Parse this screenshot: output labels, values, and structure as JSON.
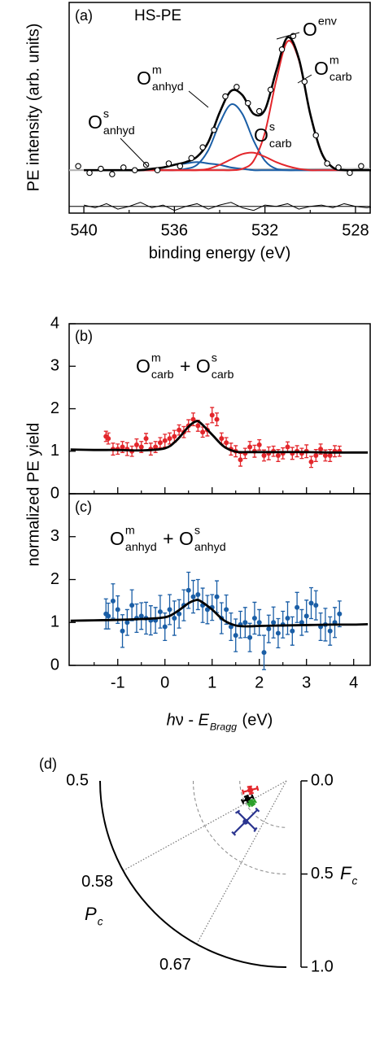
{
  "chart_data": [
    {
      "type": "line",
      "label": "(a)",
      "annotation": "HS-PE",
      "xlabel": "binding energy (eV)",
      "ylabel": "PE intensity (arb. units)",
      "xlim": [
        540.65,
        527.35
      ],
      "ylim": [
        -0.32,
        1.25
      ],
      "xticks": [
        540,
        536,
        532,
        528
      ],
      "xminorticks": [
        538,
        534,
        530
      ],
      "x": [
        540,
        539.5,
        539,
        538.5,
        538,
        537.5,
        537,
        536.5,
        536,
        535.5,
        535,
        534.5,
        534,
        533.5,
        533,
        532.5,
        532,
        531.5,
        531,
        530.5,
        530,
        529.5,
        529,
        528.5,
        528,
        527.5,
        527
      ],
      "series": [
        {
          "label": {
            "text": "O",
            "sup": "env",
            "color": "#000000"
          },
          "color": "#000000",
          "values": [
            0,
            0,
            0,
            0,
            0,
            0,
            0.01,
            0.02,
            0.04,
            0.06,
            0.1,
            0.21,
            0.43,
            0.59,
            0.56,
            0.42,
            0.45,
            0.74,
            0.99,
            0.83,
            0.42,
            0.13,
            0.02,
            0,
            0,
            0,
            0
          ]
        },
        {
          "label": {
            "text": "O",
            "sup": "m",
            "sub": "carb",
            "color": "#e3262b"
          },
          "color": "#e3262b",
          "values": [
            0,
            0,
            0,
            0,
            0,
            0,
            0,
            0,
            0,
            0,
            0,
            0,
            0,
            0,
            0.01,
            0.07,
            0.28,
            0.67,
            0.96,
            0.82,
            0.42,
            0.13,
            0.02,
            0,
            0,
            0,
            0
          ]
        },
        {
          "label": {
            "text": "O",
            "sup": "s",
            "sub": "carb",
            "color": "#e3262b"
          },
          "color": "#e3262b",
          "values": [
            0,
            0,
            0,
            0,
            0,
            0,
            0,
            0,
            0,
            0,
            0,
            0.01,
            0.04,
            0.08,
            0.12,
            0.13,
            0.1,
            0.06,
            0.03,
            0.01,
            0,
            0,
            0,
            0,
            0,
            0,
            0
          ]
        },
        {
          "label": {
            "text": "O",
            "sup": "m",
            "sub": "anhyd",
            "color": "#2b3590"
          },
          "color": "#1a5ea6",
          "values": [
            0,
            0,
            0,
            0,
            0,
            0,
            0,
            0,
            0,
            0.01,
            0.04,
            0.15,
            0.35,
            0.49,
            0.42,
            0.22,
            0.07,
            0.01,
            0,
            0,
            0,
            0,
            0,
            0,
            0,
            0,
            0
          ]
        },
        {
          "label": {
            "text": "O",
            "sup": "s",
            "sub": "anhyd",
            "color": "#2b3590"
          },
          "color": "#1a5ea6",
          "values": [
            0,
            0,
            0,
            0,
            0,
            0,
            0.01,
            0.02,
            0.04,
            0.05,
            0.06,
            0.05,
            0.04,
            0.02,
            0.01,
            0,
            0,
            0,
            0,
            0,
            0,
            0,
            0,
            0,
            0,
            0,
            0
          ]
        },
        {
          "color": "#b0b0b0",
          "x": [
            540.65,
            527.35
          ],
          "values": [
            0,
            0.01
          ]
        }
      ],
      "points": {
        "color": "#000000",
        "x": [
          540.25,
          539.75,
          539.25,
          538.75,
          538.25,
          537.75,
          537.25,
          536.75,
          536.25,
          535.75,
          535.25,
          534.75,
          534.25,
          533.75,
          533.25,
          532.75,
          532.25,
          531.75,
          531.25,
          530.75,
          530.25,
          529.75,
          529.25,
          528.75,
          528.25,
          527.75
        ],
        "values": [
          0.03,
          -0.02,
          0.01,
          -0.03,
          0.02,
          0.0,
          0.04,
          0.0,
          0.05,
          0.03,
          0.09,
          0.17,
          0.3,
          0.55,
          0.62,
          0.5,
          0.44,
          0.6,
          0.9,
          1.0,
          0.66,
          0.26,
          0.05,
          0.02,
          -0.02,
          0.03
        ]
      },
      "residual": {
        "color": "#000000",
        "values": [
          -0.26,
          -0.28,
          -0.25,
          -0.29,
          -0.27,
          -0.24,
          -0.28,
          -0.26,
          -0.3,
          -0.27,
          -0.25,
          -0.29,
          -0.26,
          -0.24,
          -0.28,
          -0.3,
          -0.26,
          -0.27,
          -0.25,
          -0.29,
          -0.27,
          -0.26,
          -0.28,
          -0.25,
          -0.27,
          -0.28,
          -0.27
        ]
      },
      "residual_baseline": -0.27
    },
    {
      "type": "errorbar",
      "label": "(b)",
      "annotation": {
        "color": "#e3262b",
        "parts": [
          {
            "text": "O",
            "sup": "m",
            "sub": "carb"
          },
          {
            "text": " + "
          },
          {
            "text": "O",
            "sup": "s",
            "sub": "carb"
          }
        ]
      },
      "ylabel": "normalized PE yield",
      "xlim": [
        -2.03,
        4.35
      ],
      "ylim": [
        0,
        4
      ],
      "yticks": [
        0,
        1,
        2,
        3,
        4
      ],
      "xticks": [
        -1,
        0,
        1,
        2,
        3,
        4
      ],
      "xminorticks": [
        -1.5,
        -0.5,
        0.5,
        1.5,
        2.5,
        3.5
      ],
      "xtick_labels": false,
      "points": {
        "color": "#e3262b",
        "x": [
          -1.25,
          -1.2,
          -1.1,
          -1.0,
          -0.9,
          -0.8,
          -0.7,
          -0.6,
          -0.5,
          -0.4,
          -0.3,
          -0.2,
          -0.1,
          0,
          0.1,
          0.2,
          0.3,
          0.4,
          0.5,
          0.6,
          0.7,
          0.8,
          0.9,
          1.0,
          1.1,
          1.2,
          1.3,
          1.4,
          1.5,
          1.6,
          1.7,
          1.8,
          1.9,
          2.0,
          2.1,
          2.2,
          2.3,
          2.4,
          2.5,
          2.6,
          2.7,
          2.8,
          2.9,
          3.0,
          3.1,
          3.2,
          3.3,
          3.4,
          3.5,
          3.6,
          3.7
        ],
        "values": [
          1.35,
          1.3,
          1.05,
          1.05,
          1.1,
          1.05,
          1.0,
          1.15,
          1.1,
          1.3,
          1.05,
          1.1,
          1.2,
          1.25,
          1.3,
          1.35,
          1.5,
          1.45,
          1.6,
          1.75,
          1.6,
          1.45,
          1.5,
          1.85,
          1.75,
          1.3,
          1.2,
          1.05,
          1.0,
          0.8,
          0.95,
          1.1,
          1.0,
          1.15,
          0.9,
          0.95,
          1.0,
          0.9,
          0.95,
          1.1,
          0.95,
          1.0,
          0.95,
          1.0,
          0.75,
          0.9,
          1.05,
          0.9,
          0.9,
          1.0,
          1.0
        ],
        "errors": [
          0.12,
          0.13,
          0.14,
          0.12,
          0.13,
          0.15,
          0.12,
          0.14,
          0.13,
          0.12,
          0.14,
          0.13,
          0.12,
          0.15,
          0.13,
          0.14,
          0.12,
          0.13,
          0.14,
          0.15,
          0.13,
          0.12,
          0.14,
          0.18,
          0.15,
          0.13,
          0.12,
          0.14,
          0.13,
          0.15,
          0.12,
          0.13,
          0.14,
          0.12,
          0.13,
          0.15,
          0.12,
          0.14,
          0.13,
          0.12,
          0.14,
          0.13,
          0.12,
          0.15,
          0.13,
          0.14,
          0.12,
          0.13,
          0.14,
          0.13,
          0.12
        ]
      },
      "fit": {
        "color": "#000000",
        "x": [
          -2.0,
          -1.5,
          -1.0,
          -0.5,
          0,
          0.25,
          0.5,
          0.65,
          0.75,
          1.0,
          1.25,
          1.5,
          1.75,
          2.0,
          2.5,
          3,
          3.5,
          4,
          4.3
        ],
        "values": [
          1.04,
          1.03,
          1.03,
          1.02,
          1.07,
          1.26,
          1.58,
          1.7,
          1.67,
          1.39,
          1.11,
          0.99,
          0.98,
          0.98,
          0.98,
          0.98,
          0.97,
          0.97,
          0.97
        ]
      }
    },
    {
      "type": "errorbar",
      "label": "(c)",
      "annotation": {
        "color": "#2b3590",
        "parts": [
          {
            "text": "O",
            "sup": "m",
            "sub": "anhyd"
          },
          {
            "text": " + "
          },
          {
            "text": "O",
            "sup": "s",
            "sub": "anhyd"
          }
        ]
      },
      "xlabel": {
        "parts": [
          {
            "text": "h",
            "italic": true
          },
          {
            "text": "ν - "
          },
          {
            "text": "E",
            "italic": true,
            "sub": "Bragg"
          },
          {
            "text": " (eV)"
          }
        ]
      },
      "xlim": [
        -2.03,
        4.35
      ],
      "ylim": [
        0,
        4
      ],
      "yticks": [
        0,
        1,
        2,
        3
      ],
      "xticks": [
        -1,
        0,
        1,
        2,
        3,
        4
      ],
      "xminorticks": [
        -1.5,
        -0.5,
        0.5,
        1.5,
        2.5,
        3.5
      ],
      "points": {
        "color": "#1a5ea6",
        "x": [
          -1.25,
          -1.2,
          -1.1,
          -1.0,
          -0.9,
          -0.8,
          -0.7,
          -0.6,
          -0.5,
          -0.4,
          -0.3,
          -0.2,
          -0.1,
          0,
          0.1,
          0.2,
          0.3,
          0.4,
          0.5,
          0.6,
          0.7,
          0.8,
          0.9,
          1.0,
          1.1,
          1.2,
          1.3,
          1.4,
          1.5,
          1.6,
          1.7,
          1.8,
          1.9,
          2.0,
          2.1,
          2.2,
          2.3,
          2.4,
          2.5,
          2.6,
          2.7,
          2.8,
          2.9,
          3.0,
          3.1,
          3.2,
          3.3,
          3.4,
          3.5,
          3.6,
          3.7
        ],
        "values": [
          1.2,
          1.15,
          1.5,
          1.3,
          0.8,
          1.0,
          1.4,
          1.1,
          1.15,
          1.1,
          1.05,
          1.05,
          1.25,
          0.9,
          1.3,
          1.1,
          1.2,
          1.4,
          1.75,
          1.6,
          1.65,
          1.4,
          1.3,
          1.35,
          1.6,
          1.1,
          1.3,
          0.9,
          0.7,
          0.95,
          1.0,
          0.65,
          1.1,
          1.0,
          0.3,
          0.85,
          1.0,
          0.75,
          0.95,
          1.1,
          0.8,
          1.35,
          1.0,
          1.15,
          1.45,
          1.4,
          0.9,
          0.95,
          0.8,
          1.0,
          1.2
        ],
        "errors": [
          0.35,
          0.3,
          0.4,
          0.32,
          0.38,
          0.3,
          0.36,
          0.33,
          0.31,
          0.37,
          0.34,
          0.3,
          0.38,
          0.32,
          0.35,
          0.4,
          0.33,
          0.36,
          0.42,
          0.38,
          0.35,
          0.4,
          0.33,
          0.3,
          0.37,
          0.36,
          0.34,
          0.32,
          0.38,
          0.31,
          0.35,
          0.33,
          0.37,
          0.3,
          0.4,
          0.32,
          0.36,
          0.34,
          0.31,
          0.38,
          0.33,
          0.35,
          0.3,
          0.37,
          0.36,
          0.34,
          0.32,
          0.38,
          0.33,
          0.35,
          0.3
        ]
      },
      "fit": {
        "color": "#000000",
        "x": [
          -2.0,
          -1.5,
          -1.0,
          -0.5,
          0,
          0.25,
          0.5,
          0.65,
          0.75,
          1.0,
          1.25,
          1.5,
          1.75,
          2.0,
          2.5,
          3,
          3.5,
          4,
          4.3
        ],
        "values": [
          1.04,
          1.05,
          1.06,
          1.08,
          1.12,
          1.25,
          1.45,
          1.52,
          1.5,
          1.3,
          1.05,
          0.93,
          0.91,
          0.92,
          0.93,
          0.94,
          0.95,
          0.95,
          0.96
        ]
      }
    },
    {
      "type": "polar",
      "label": "(d)",
      "phase_lim": [
        0.5,
        0.75
      ],
      "phase_ticks": [
        0.5,
        0.58,
        0.67
      ],
      "phase_label": {
        "text": "P",
        "italic": true,
        "sub": "c"
      },
      "amplitude_lim": [
        0,
        1
      ],
      "amplitude_ticks": [
        {
          "value": 0,
          "label": "0.0"
        },
        {
          "value": 0.5,
          "label": "0.5"
        },
        {
          "value": 1,
          "label": "1.0"
        }
      ],
      "amplitude_label": {
        "text": "F",
        "italic": true,
        "sub": "c"
      },
      "amplitude_grid": [
        0.25,
        0.5
      ],
      "series": [
        {
          "color": "#e3262b",
          "amplitude": 0.2,
          "phase": 0.54,
          "amplitude_error": 0.04,
          "phase_error": 0.015
        },
        {
          "color": "#000000",
          "amplitude": 0.23,
          "phase": 0.57,
          "amplitude_error": 0.03,
          "phase_error": 0.012
        },
        {
          "color": "#2ca02c",
          "amplitude": 0.22,
          "phase": 0.59,
          "amplitude_error": 0.02,
          "phase_error": 0.01
        },
        {
          "color": "#2b3590",
          "amplitude": 0.31,
          "phase": 0.625,
          "amplitude_error": 0.09,
          "phase_error": 0.035
        }
      ]
    }
  ]
}
